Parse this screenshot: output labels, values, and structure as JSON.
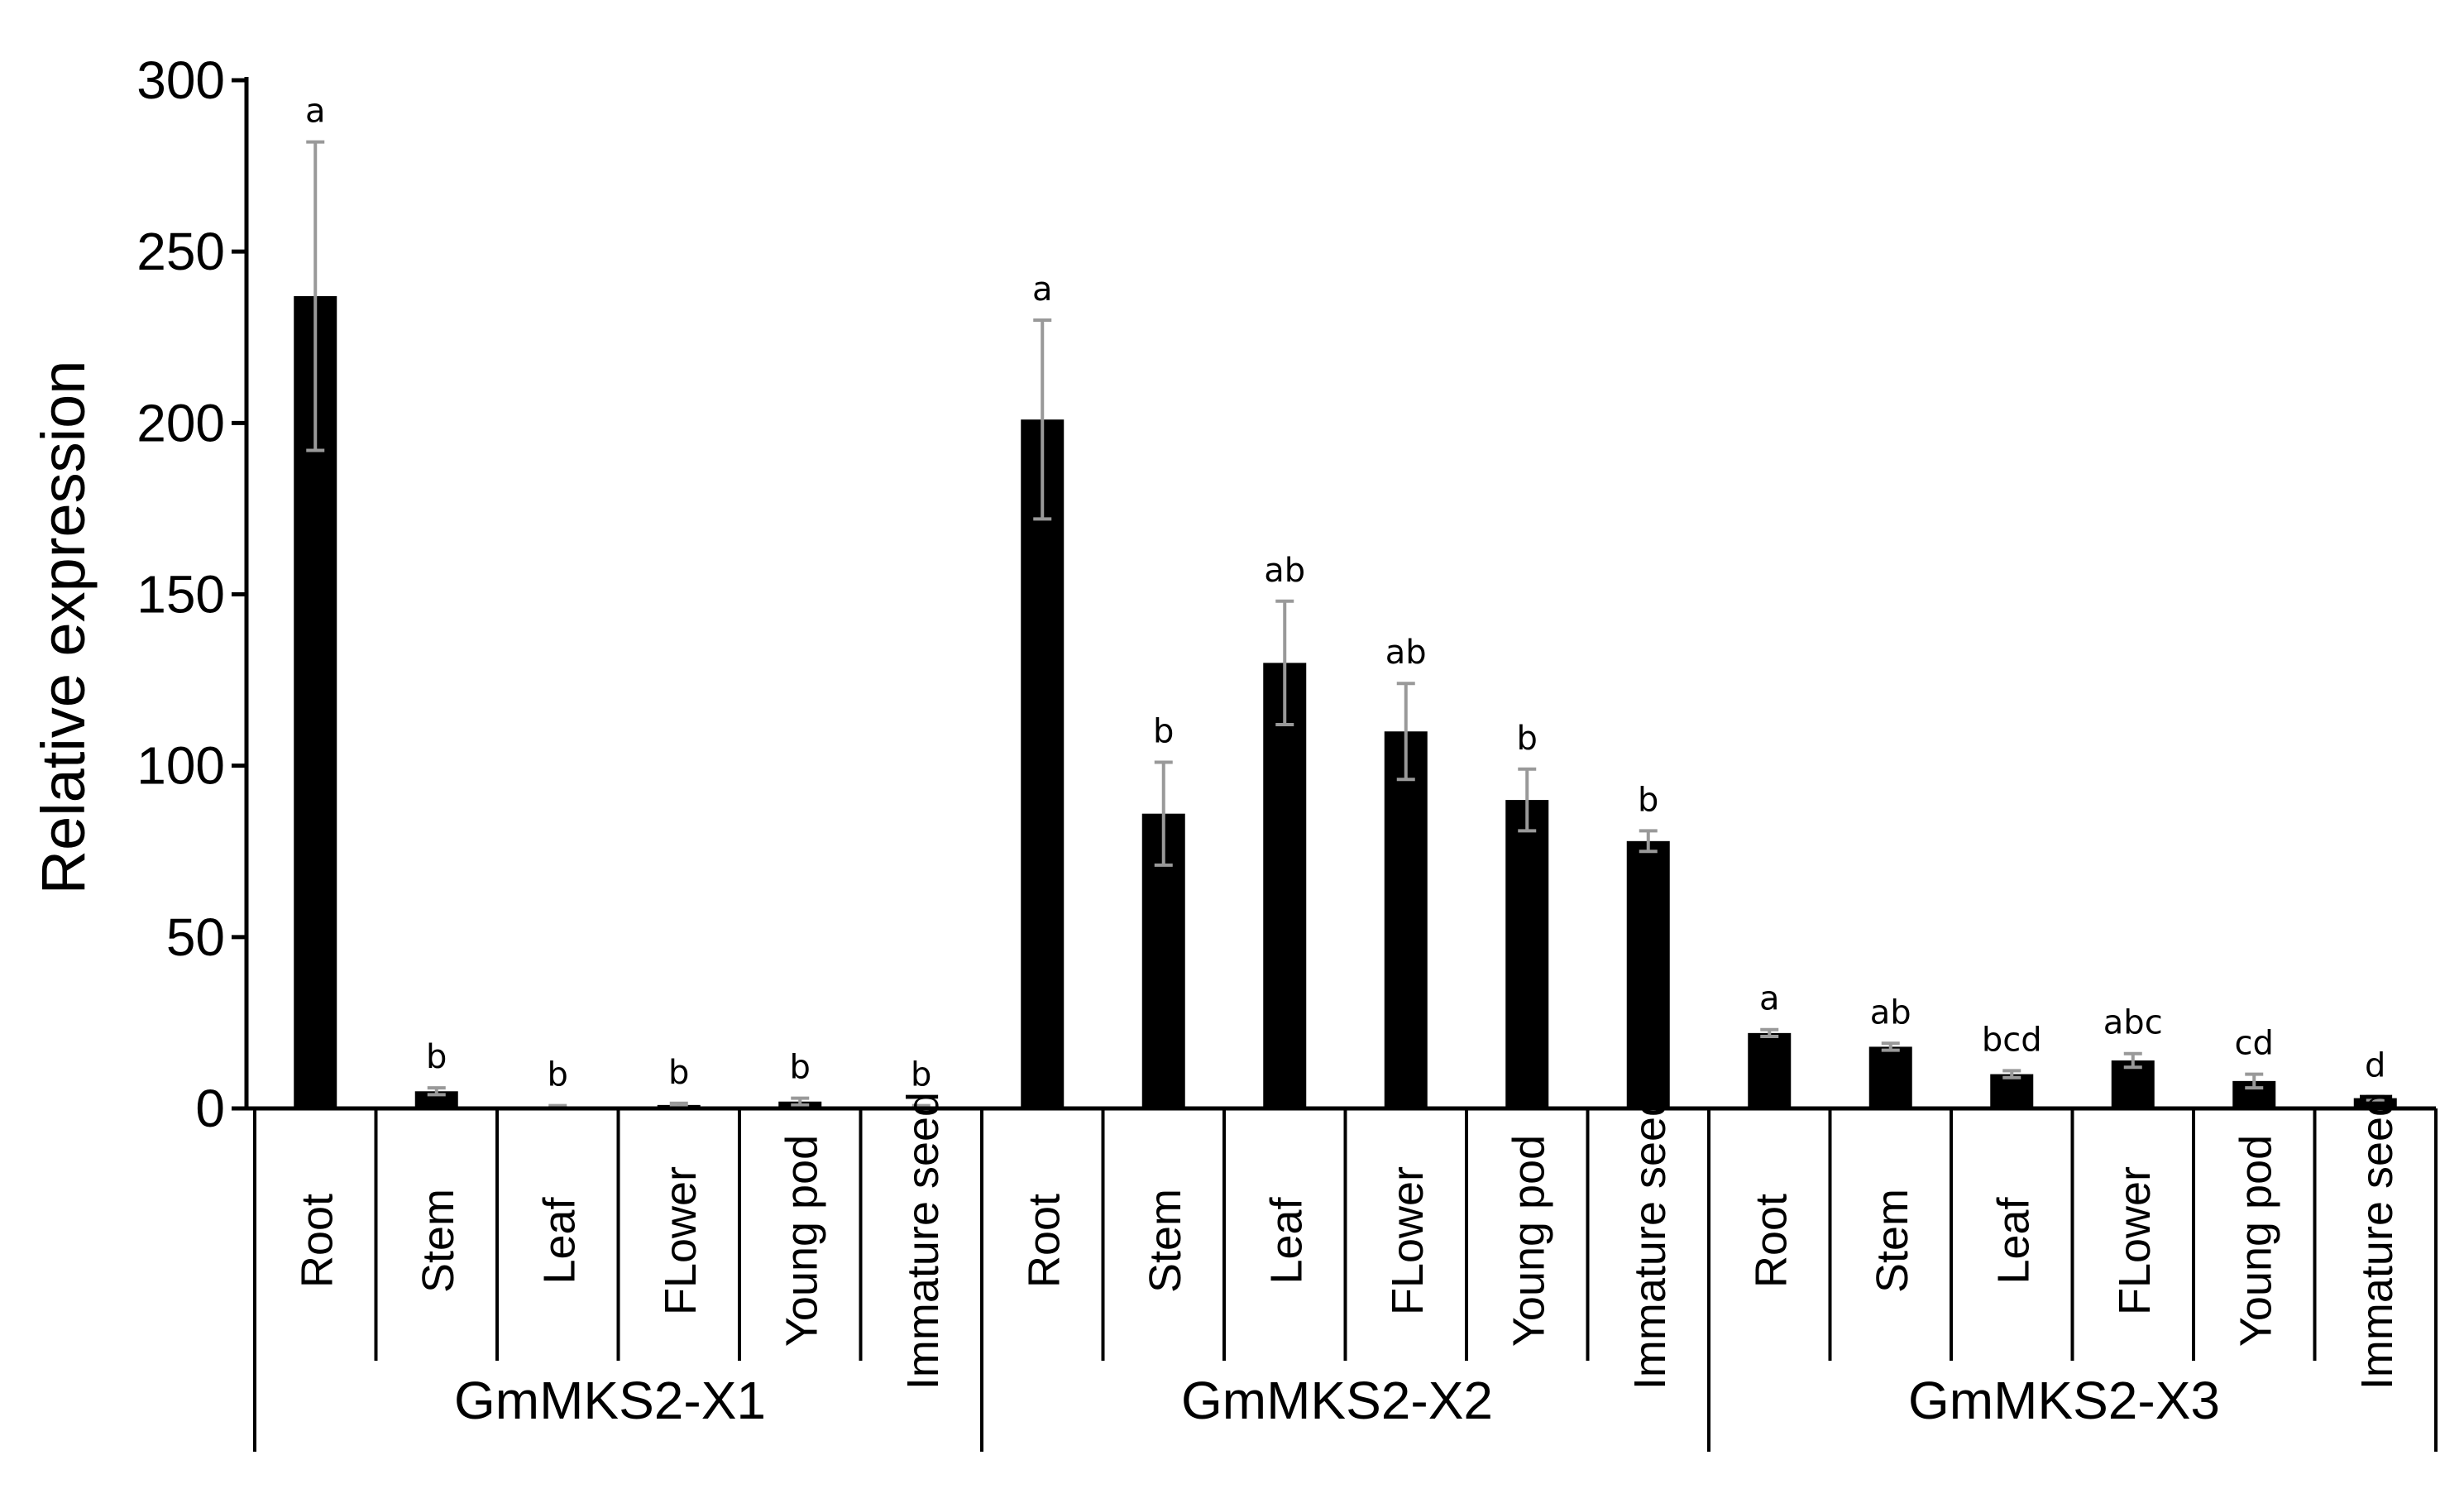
{
  "chart_data": {
    "type": "bar",
    "ylabel": "Relative expression",
    "ylim": [
      0,
      300
    ],
    "yticks": [
      0,
      50,
      100,
      150,
      200,
      250,
      300
    ],
    "bar_color": "#000000",
    "error_color": "#999999",
    "groups": [
      {
        "name": "GmMKS2-X1",
        "categories": [
          "Root",
          "Stem",
          "Leaf",
          "FLower",
          "Young pod",
          "Immature seed"
        ],
        "values": [
          237,
          5,
          0.5,
          1,
          2,
          0.5
        ],
        "errors": [
          45,
          1,
          0.3,
          0.5,
          1,
          0.3
        ],
        "letters": [
          "a",
          "b",
          "b",
          "b",
          "b",
          "b"
        ]
      },
      {
        "name": "GmMKS2-X2",
        "categories": [
          "Root",
          "Stem",
          "Leaf",
          "FLower",
          "Young pod",
          "Immature seed"
        ],
        "values": [
          201,
          86,
          130,
          110,
          90,
          78
        ],
        "errors": [
          29,
          15,
          18,
          14,
          9,
          3
        ],
        "letters": [
          "a",
          "b",
          "ab",
          "ab",
          "b",
          "b"
        ]
      },
      {
        "name": "GmMKS2-X3",
        "categories": [
          "Root",
          "Stem",
          "Leaf",
          "FLower",
          "Young pod",
          "Immature seed"
        ],
        "values": [
          22,
          18,
          10,
          14,
          8,
          3
        ],
        "errors": [
          1,
          1,
          1,
          2,
          2,
          0.5
        ],
        "letters": [
          "a",
          "ab",
          "bcd",
          "abc",
          "cd",
          "d"
        ]
      }
    ]
  }
}
